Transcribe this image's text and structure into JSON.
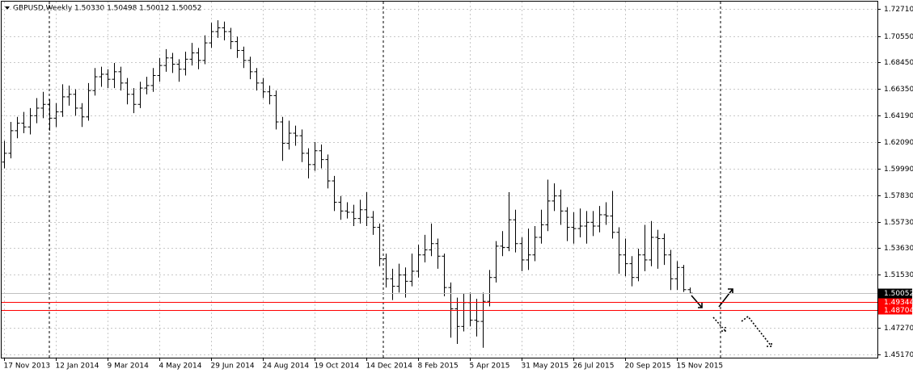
{
  "chart_data": {
    "type": "ohlc",
    "title": "GBPUSD,Weekly  1.50330 1.50498 1.50012 1.50052",
    "categories": [
      "17 Nov 2013",
      null,
      null,
      null,
      null,
      null,
      null,
      null,
      "12 Jan 2014",
      null,
      null,
      null,
      null,
      null,
      null,
      null,
      "9 Mar 2014",
      null,
      null,
      null,
      null,
      null,
      null,
      null,
      "4 May 2014",
      null,
      null,
      null,
      null,
      null,
      null,
      null,
      "29 Jun 2014",
      null,
      null,
      null,
      null,
      null,
      null,
      null,
      "24 Aug 2014",
      null,
      null,
      null,
      null,
      null,
      null,
      null,
      "19 Oct 2014",
      null,
      null,
      null,
      null,
      null,
      null,
      null,
      "14 Dec 2014",
      null,
      null,
      null,
      null,
      null,
      null,
      null,
      "8 Feb 2015",
      null,
      null,
      null,
      null,
      null,
      null,
      null,
      "5 Apr 2015",
      null,
      null,
      null,
      null,
      null,
      null,
      null,
      "31 May 2015",
      null,
      null,
      null,
      null,
      null,
      null,
      null,
      "26 Jul 2015",
      null,
      null,
      null,
      null,
      null,
      null,
      null,
      "20 Sep 2015",
      null,
      null,
      null,
      null,
      null,
      null,
      null,
      "15 Nov 2015",
      null,
      null
    ],
    "open": [
      1.605,
      1.612,
      1.63,
      1.636,
      1.633,
      1.642,
      1.648,
      1.651,
      1.64,
      1.645,
      1.657,
      1.659,
      1.648,
      1.641,
      1.662,
      1.673,
      1.675,
      1.671,
      1.677,
      1.668,
      1.659,
      1.651,
      1.664,
      1.666,
      1.674,
      1.682,
      1.688,
      1.683,
      1.679,
      1.687,
      1.692,
      1.686,
      1.7,
      1.709,
      1.712,
      1.709,
      1.701,
      1.694,
      1.686,
      1.677,
      1.668,
      1.661,
      1.658,
      1.637,
      1.62,
      1.628,
      1.626,
      1.612,
      1.603,
      1.614,
      1.607,
      1.59,
      1.573,
      1.566,
      1.565,
      1.56,
      1.567,
      1.561,
      1.553,
      1.528,
      1.512,
      1.506,
      1.515,
      1.51,
      1.518,
      1.531,
      1.535,
      1.54,
      1.53,
      1.505,
      1.488,
      1.474,
      1.493,
      1.479,
      1.478,
      1.494,
      1.513,
      1.538,
      1.537,
      1.559,
      1.54,
      1.527,
      1.531,
      1.545,
      1.555,
      1.574,
      1.578,
      1.566,
      1.553,
      1.552,
      1.554,
      1.557,
      1.554,
      1.563,
      1.562,
      1.549,
      1.531,
      1.524,
      1.513,
      1.531,
      1.527,
      1.545,
      1.544,
      1.531,
      1.512,
      1.521,
      1.5033
    ],
    "high": [
      1.622,
      1.637,
      1.641,
      1.645,
      1.648,
      1.656,
      1.661,
      1.655,
      1.652,
      1.667,
      1.666,
      1.663,
      1.652,
      1.668,
      1.68,
      1.681,
      1.679,
      1.684,
      1.681,
      1.672,
      1.664,
      1.669,
      1.673,
      1.68,
      1.688,
      1.695,
      1.692,
      1.687,
      1.693,
      1.7,
      1.696,
      1.706,
      1.716,
      1.718,
      1.717,
      1.712,
      1.705,
      1.697,
      1.689,
      1.68,
      1.672,
      1.666,
      1.662,
      1.641,
      1.638,
      1.634,
      1.631,
      1.616,
      1.621,
      1.619,
      1.611,
      1.594,
      1.578,
      1.573,
      1.571,
      1.575,
      1.581,
      1.566,
      1.556,
      1.532,
      1.52,
      1.524,
      1.521,
      1.532,
      1.539,
      1.547,
      1.556,
      1.544,
      1.532,
      1.509,
      1.497,
      1.5,
      1.501,
      1.496,
      1.501,
      1.519,
      1.542,
      1.55,
      1.581,
      1.567,
      1.545,
      1.552,
      1.554,
      1.567,
      1.591,
      1.588,
      1.583,
      1.569,
      1.565,
      1.568,
      1.566,
      1.566,
      1.57,
      1.573,
      1.582,
      1.553,
      1.544,
      1.53,
      1.536,
      1.555,
      1.558,
      1.551,
      1.548,
      1.535,
      1.526,
      1.523,
      1.50498
    ],
    "low": [
      1.6,
      1.608,
      1.624,
      1.628,
      1.627,
      1.636,
      1.64,
      1.63,
      1.633,
      1.641,
      1.65,
      1.642,
      1.633,
      1.638,
      1.658,
      1.665,
      1.664,
      1.664,
      1.662,
      1.651,
      1.644,
      1.648,
      1.659,
      1.661,
      1.669,
      1.677,
      1.676,
      1.669,
      1.674,
      1.682,
      1.679,
      1.683,
      1.696,
      1.704,
      1.702,
      1.695,
      1.688,
      1.68,
      1.671,
      1.662,
      1.656,
      1.651,
      1.631,
      1.606,
      1.615,
      1.618,
      1.605,
      1.592,
      1.598,
      1.6,
      1.584,
      1.566,
      1.559,
      1.56,
      1.554,
      1.556,
      1.554,
      1.547,
      1.522,
      1.505,
      1.495,
      1.501,
      1.497,
      1.506,
      1.513,
      1.525,
      1.53,
      1.52,
      1.498,
      1.465,
      1.46,
      1.47,
      1.474,
      1.466,
      1.457,
      1.49,
      1.509,
      1.53,
      1.534,
      1.533,
      1.518,
      1.519,
      1.526,
      1.54,
      1.55,
      1.566,
      1.555,
      1.542,
      1.54,
      1.545,
      1.54,
      1.546,
      1.549,
      1.555,
      1.544,
      1.516,
      1.514,
      1.506,
      1.51,
      1.518,
      1.522,
      1.52,
      1.523,
      1.503,
      1.503,
      1.5015,
      1.50012
    ],
    "close": [
      1.612,
      1.63,
      1.636,
      1.633,
      1.642,
      1.648,
      1.651,
      1.64,
      1.645,
      1.657,
      1.659,
      1.648,
      1.641,
      1.662,
      1.673,
      1.675,
      1.671,
      1.677,
      1.668,
      1.659,
      1.651,
      1.664,
      1.666,
      1.674,
      1.682,
      1.688,
      1.683,
      1.679,
      1.687,
      1.692,
      1.686,
      1.7,
      1.709,
      1.712,
      1.709,
      1.701,
      1.694,
      1.686,
      1.677,
      1.668,
      1.661,
      1.658,
      1.637,
      1.62,
      1.628,
      1.626,
      1.612,
      1.603,
      1.614,
      1.607,
      1.59,
      1.573,
      1.566,
      1.565,
      1.56,
      1.567,
      1.561,
      1.553,
      1.528,
      1.512,
      1.506,
      1.515,
      1.51,
      1.518,
      1.531,
      1.535,
      1.54,
      1.53,
      1.505,
      1.488,
      1.474,
      1.493,
      1.479,
      1.478,
      1.494,
      1.513,
      1.538,
      1.537,
      1.559,
      1.54,
      1.527,
      1.531,
      1.545,
      1.555,
      1.574,
      1.578,
      1.566,
      1.553,
      1.552,
      1.554,
      1.557,
      1.554,
      1.563,
      1.562,
      1.549,
      1.531,
      1.524,
      1.513,
      1.531,
      1.527,
      1.545,
      1.544,
      1.531,
      1.512,
      1.521,
      1.5033,
      1.50052
    ],
    "color": "#000000",
    "ylim": [
      1.4491,
      1.7329
    ],
    "yticks": [
      {
        "value": 1.7271,
        "label": "1.72710"
      },
      {
        "value": 1.7055,
        "label": "1.70550"
      },
      {
        "value": 1.6845,
        "label": "1.68450"
      },
      {
        "value": 1.6635,
        "label": "1.66350"
      },
      {
        "value": 1.6419,
        "label": "1.64190"
      },
      {
        "value": 1.6209,
        "label": "1.62090"
      },
      {
        "value": 1.5999,
        "label": "1.59990"
      },
      {
        "value": 1.5783,
        "label": "1.57830"
      },
      {
        "value": 1.5573,
        "label": "1.55730"
      },
      {
        "value": 1.5363,
        "label": "1.53630"
      },
      {
        "value": 1.5153,
        "label": "1.51530"
      },
      {
        "value": 1.4937,
        "label": "1.49370"
      },
      {
        "value": 1.4727,
        "label": "1.47270"
      },
      {
        "value": 1.4517,
        "label": "1.45170"
      }
    ],
    "grid": true,
    "hlines": [
      {
        "value": 1.49344,
        "label": "1.49344",
        "color": "#ff0000"
      },
      {
        "value": 1.48704,
        "label": "1.48704",
        "color": "#ff0000"
      }
    ],
    "last_price": {
      "value": 1.50052,
      "label": "1.50052",
      "color": "#000000"
    }
  }
}
